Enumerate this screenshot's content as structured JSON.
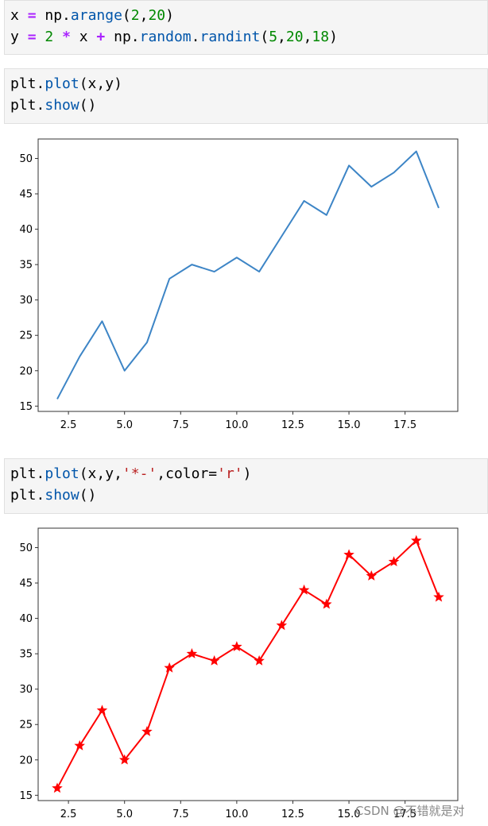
{
  "cells": [
    {
      "lines": [
        [
          {
            "t": "x ",
            "c": ""
          },
          {
            "t": "=",
            "c": "kw-op"
          },
          {
            "t": " np.",
            "c": ""
          },
          {
            "t": "arange",
            "c": "kw-fn"
          },
          {
            "t": "(",
            "c": ""
          },
          {
            "t": "2",
            "c": "num"
          },
          {
            "t": ",",
            "c": ""
          },
          {
            "t": "20",
            "c": "num"
          },
          {
            "t": ")",
            "c": ""
          }
        ],
        [
          {
            "t": "y ",
            "c": ""
          },
          {
            "t": "=",
            "c": "kw-op"
          },
          {
            "t": " ",
            "c": ""
          },
          {
            "t": "2",
            "c": "num"
          },
          {
            "t": " ",
            "c": ""
          },
          {
            "t": "*",
            "c": "kw-op"
          },
          {
            "t": " x ",
            "c": ""
          },
          {
            "t": "+",
            "c": "kw-op"
          },
          {
            "t": " np.",
            "c": ""
          },
          {
            "t": "random",
            "c": "kw-fn"
          },
          {
            "t": ".",
            "c": ""
          },
          {
            "t": "randint",
            "c": "kw-fn"
          },
          {
            "t": "(",
            "c": ""
          },
          {
            "t": "5",
            "c": "num"
          },
          {
            "t": ",",
            "c": ""
          },
          {
            "t": "20",
            "c": "num"
          },
          {
            "t": ",",
            "c": ""
          },
          {
            "t": "18",
            "c": "num"
          },
          {
            "t": ")",
            "c": ""
          }
        ]
      ]
    },
    {
      "lines": [
        [
          {
            "t": "plt.",
            "c": ""
          },
          {
            "t": "plot",
            "c": "kw-fn"
          },
          {
            "t": "(x,y)",
            "c": ""
          }
        ],
        [
          {
            "t": "plt.",
            "c": ""
          },
          {
            "t": "show",
            "c": "kw-fn"
          },
          {
            "t": "()",
            "c": ""
          }
        ]
      ]
    },
    {
      "lines": [
        [
          {
            "t": "plt.",
            "c": ""
          },
          {
            "t": "plot",
            "c": "kw-fn"
          },
          {
            "t": "(x,y,",
            "c": ""
          },
          {
            "t": "'*-'",
            "c": "str"
          },
          {
            "t": ",color=",
            "c": ""
          },
          {
            "t": "'r'",
            "c": "str"
          },
          {
            "t": ")",
            "c": ""
          }
        ],
        [
          {
            "t": "plt.",
            "c": ""
          },
          {
            "t": "show",
            "c": "kw-fn"
          },
          {
            "t": "()",
            "c": ""
          }
        ]
      ]
    }
  ],
  "chart_data": [
    {
      "type": "line",
      "x": [
        2,
        3,
        4,
        5,
        6,
        7,
        8,
        9,
        10,
        11,
        12,
        13,
        14,
        15,
        16,
        17,
        18,
        19
      ],
      "series": [
        {
          "values": [
            16,
            22,
            27,
            20,
            24,
            33,
            35,
            34,
            36,
            34,
            39,
            44,
            42,
            49,
            46,
            48,
            51,
            43
          ],
          "color": "#3d85c6",
          "marker": "none"
        }
      ],
      "xticks": [
        "2.5",
        "5.0",
        "7.5",
        "10.0",
        "12.5",
        "15.0",
        "17.5"
      ],
      "yticks": [
        "15",
        "20",
        "25",
        "30",
        "35",
        "40",
        "45",
        "50"
      ],
      "xlim": [
        1.15,
        19.85
      ],
      "ylim": [
        14.25,
        52.75
      ],
      "grid": false
    },
    {
      "type": "line",
      "x": [
        2,
        3,
        4,
        5,
        6,
        7,
        8,
        9,
        10,
        11,
        12,
        13,
        14,
        15,
        16,
        17,
        18,
        19
      ],
      "series": [
        {
          "values": [
            16,
            22,
            27,
            20,
            24,
            33,
            35,
            34,
            36,
            34,
            39,
            44,
            42,
            49,
            46,
            48,
            51,
            43
          ],
          "color": "#ff0000",
          "marker": "star"
        }
      ],
      "xticks": [
        "2.5",
        "5.0",
        "7.5",
        "10.0",
        "12.5",
        "15.0",
        "17.5"
      ],
      "yticks": [
        "15",
        "20",
        "25",
        "30",
        "35",
        "40",
        "45",
        "50"
      ],
      "xlim": [
        1.15,
        19.85
      ],
      "ylim": [
        14.25,
        52.75
      ],
      "grid": false
    }
  ],
  "watermark": "CSDN @不错就是对"
}
